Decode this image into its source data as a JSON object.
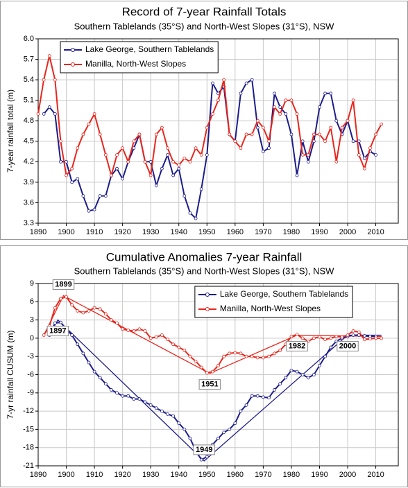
{
  "chart_data": [
    {
      "type": "line",
      "title": "Record of 7-year Rainfall Totals",
      "subtitle": "Southern Tablelands (35°S) and North-West Slopes (31°S), NSW",
      "ylabel": "7-year rainfall total (m)",
      "x": [
        1890,
        1892,
        1894,
        1896,
        1898,
        1900,
        1902,
        1904,
        1906,
        1908,
        1910,
        1912,
        1914,
        1916,
        1918,
        1920,
        1922,
        1924,
        1926,
        1928,
        1930,
        1932,
        1934,
        1936,
        1938,
        1940,
        1942,
        1944,
        1946,
        1948,
        1950,
        1952,
        1954,
        1956,
        1958,
        1960,
        1962,
        1964,
        1966,
        1968,
        1970,
        1972,
        1974,
        1976,
        1978,
        1980,
        1982,
        1984,
        1986,
        1988,
        1990,
        1992,
        1994,
        1996,
        1998,
        2000,
        2002,
        2004,
        2006,
        2008,
        2010,
        2012
      ],
      "series": [
        {
          "name": "Lake George, Southern Tablelands",
          "color": "#1c1c8c",
          "values": [
            null,
            4.9,
            5.0,
            4.9,
            4.2,
            4.2,
            3.9,
            3.95,
            3.7,
            3.48,
            3.5,
            3.7,
            3.7,
            4.0,
            4.1,
            3.95,
            4.2,
            4.4,
            4.6,
            4.2,
            4.2,
            3.85,
            4.1,
            4.3,
            4.0,
            4.1,
            3.7,
            3.45,
            3.37,
            3.8,
            4.3,
            5.35,
            5.2,
            5.3,
            4.6,
            4.5,
            5.2,
            5.35,
            5.4,
            4.7,
            4.35,
            4.4,
            5.2,
            5.0,
            4.9,
            4.6,
            4.0,
            4.5,
            4.2,
            4.5,
            5.0,
            5.2,
            5.2,
            4.8,
            4.6,
            4.8,
            4.5,
            4.5,
            4.25,
            4.35,
            4.3,
            null
          ]
        },
        {
          "name": "Manilla, North-West Slopes",
          "color": "#e8261c",
          "values": [
            4.9,
            5.4,
            5.75,
            5.4,
            4.5,
            4.0,
            4.1,
            4.4,
            4.6,
            4.75,
            4.9,
            4.6,
            4.3,
            4.0,
            4.3,
            4.4,
            4.2,
            4.5,
            4.6,
            4.2,
            4.0,
            4.6,
            4.7,
            4.4,
            4.2,
            4.15,
            4.25,
            4.2,
            4.4,
            4.3,
            4.7,
            4.9,
            5.1,
            5.4,
            4.6,
            4.5,
            4.4,
            4.6,
            4.6,
            4.8,
            4.7,
            4.5,
            5.0,
            4.9,
            5.1,
            5.1,
            4.9,
            4.3,
            4.3,
            4.6,
            4.6,
            4.5,
            4.7,
            4.2,
            4.7,
            4.8,
            5.1,
            4.3,
            4.1,
            4.4,
            4.6,
            4.75
          ]
        }
      ],
      "xlim": [
        1890,
        2018
      ],
      "xticks": [
        1890,
        1900,
        1910,
        1920,
        1930,
        1940,
        1950,
        1960,
        1970,
        1980,
        1990,
        2000,
        2010
      ],
      "ylim": [
        3.3,
        6.0
      ],
      "yticks": [
        3.3,
        3.6,
        3.9,
        4.2,
        4.5,
        4.8,
        5.1,
        5.4,
        5.7,
        {
          "value": 6.0,
          "label": "6.0"
        }
      ],
      "grid": true,
      "legend": "upper left"
    },
    {
      "type": "line",
      "title": "Cumulative Anomalies 7-year Rainfall",
      "subtitle": "Southern Tablelands (35°S) and North-West Slopes (31°S), NSW",
      "ylabel": "7-yr rainfall CUSUM (m)",
      "x": [
        1890,
        1892,
        1894,
        1896,
        1898,
        1900,
        1902,
        1904,
        1906,
        1908,
        1910,
        1912,
        1914,
        1916,
        1918,
        1920,
        1922,
        1924,
        1926,
        1928,
        1930,
        1932,
        1934,
        1936,
        1938,
        1940,
        1942,
        1944,
        1946,
        1948,
        1950,
        1952,
        1954,
        1956,
        1958,
        1960,
        1962,
        1964,
        1966,
        1968,
        1970,
        1972,
        1974,
        1976,
        1978,
        1980,
        1982,
        1984,
        1986,
        1988,
        1990,
        1992,
        1994,
        1996,
        1998,
        2000,
        2002,
        2004,
        2006,
        2008,
        2010,
        2012
      ],
      "series": [
        {
          "name": "Lake George, Southern Tablelands",
          "color": "#1c1c8c",
          "values": [
            null,
            null,
            0.5,
            2.5,
            2.6,
            1.5,
            0.5,
            -1,
            -2.5,
            -4,
            -5.5,
            -6.5,
            -7.5,
            -8.5,
            -9,
            -9.5,
            -9.5,
            -10,
            -10,
            -10.5,
            -11,
            -11.5,
            -12,
            -12.5,
            -12.8,
            -14,
            -15,
            -16.5,
            -18.5,
            -20,
            -19.5,
            -17.5,
            -16.5,
            -15.5,
            -15,
            -14,
            -12,
            -11,
            -9.5,
            -9.5,
            -9.7,
            -9.8,
            -8.5,
            -7.5,
            -6.5,
            -5.3,
            -5.5,
            -6,
            -6.5,
            -6,
            -4.5,
            -3,
            -1.5,
            -0.5,
            0,
            0.3,
            0.5,
            0.5,
            0.4,
            0.3,
            0.3,
            null
          ]
        },
        {
          "name": "Manilla, North-West Slopes",
          "color": "#e8261c",
          "values": [
            null,
            0.5,
            2,
            5,
            6.5,
            6.8,
            5.5,
            4.5,
            4.2,
            4.5,
            5,
            4.8,
            4,
            3,
            2.5,
            1.5,
            1.3,
            1.2,
            1.5,
            1.2,
            0,
            0.2,
            0.5,
            -0.2,
            -1,
            -1.5,
            -2,
            -3,
            -3.8,
            -4.8,
            -5.7,
            -5.5,
            -4.5,
            -3,
            -2.5,
            -2.4,
            -2.5,
            -3,
            -3,
            -3.2,
            -3.2,
            -3,
            -2.5,
            -2,
            -1,
            0.3,
            0.6,
            0,
            -0.5,
            0,
            0.2,
            -0.2,
            0,
            0.3,
            0.2,
            0.5,
            1.2,
            1.0,
            -0.2,
            -0.1,
            0,
            0
          ]
        }
      ],
      "trend_lines": [
        {
          "color": "#1c1c8c",
          "x": [
            1894,
            1897,
            1949,
            2000,
            2012
          ],
          "y": [
            0.5,
            3,
            -20.2,
            0.5,
            0.5
          ]
        },
        {
          "color": "#e8261c",
          "x": [
            1892,
            1899,
            1951,
            1982,
            2012
          ],
          "y": [
            0.5,
            7,
            -5.8,
            0.5,
            0.3
          ]
        }
      ],
      "annotations": [
        {
          "text": "1897",
          "x": 1897,
          "y": 3,
          "color": "#1c1c8c",
          "position": "below"
        },
        {
          "text": "1899",
          "x": 1899,
          "y": 7,
          "color": "#e8261c",
          "position": "above"
        },
        {
          "text": "1949",
          "x": 1949,
          "y": -20.2,
          "color": "#1c1c8c",
          "position": "above"
        },
        {
          "text": "1951",
          "x": 1951,
          "y": -5.8,
          "color": "#e8261c",
          "position": "below"
        },
        {
          "text": "1982",
          "x": 1982,
          "y": 0.5,
          "color": "#e8261c",
          "position": "below"
        },
        {
          "text": "2000",
          "x": 2000,
          "y": 0.5,
          "color": "#000000",
          "position": "below"
        }
      ],
      "xlim": [
        1890,
        2018
      ],
      "xticks": [
        1890,
        1900,
        1910,
        1920,
        1930,
        1940,
        1950,
        1960,
        1970,
        1980,
        1990,
        2000,
        2010
      ],
      "ylim": [
        -21,
        9
      ],
      "yticks": [
        -21,
        -18,
        -15,
        -12,
        -9,
        -6,
        -3,
        0,
        3,
        6,
        9
      ],
      "grid": true,
      "legend": "upper center"
    }
  ]
}
